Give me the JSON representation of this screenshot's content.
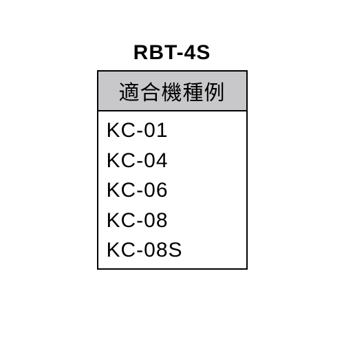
{
  "title": "RBT-4S",
  "table": {
    "header": "適合機種例",
    "rows": [
      "KC-01",
      "KC-04",
      "KC-06",
      "KC-08",
      "KC-08S"
    ],
    "header_bg_color": "#c8c8cb",
    "border_color": "#000000",
    "text_color": "#000000",
    "font_size": 30
  },
  "background_color": "#ffffff"
}
